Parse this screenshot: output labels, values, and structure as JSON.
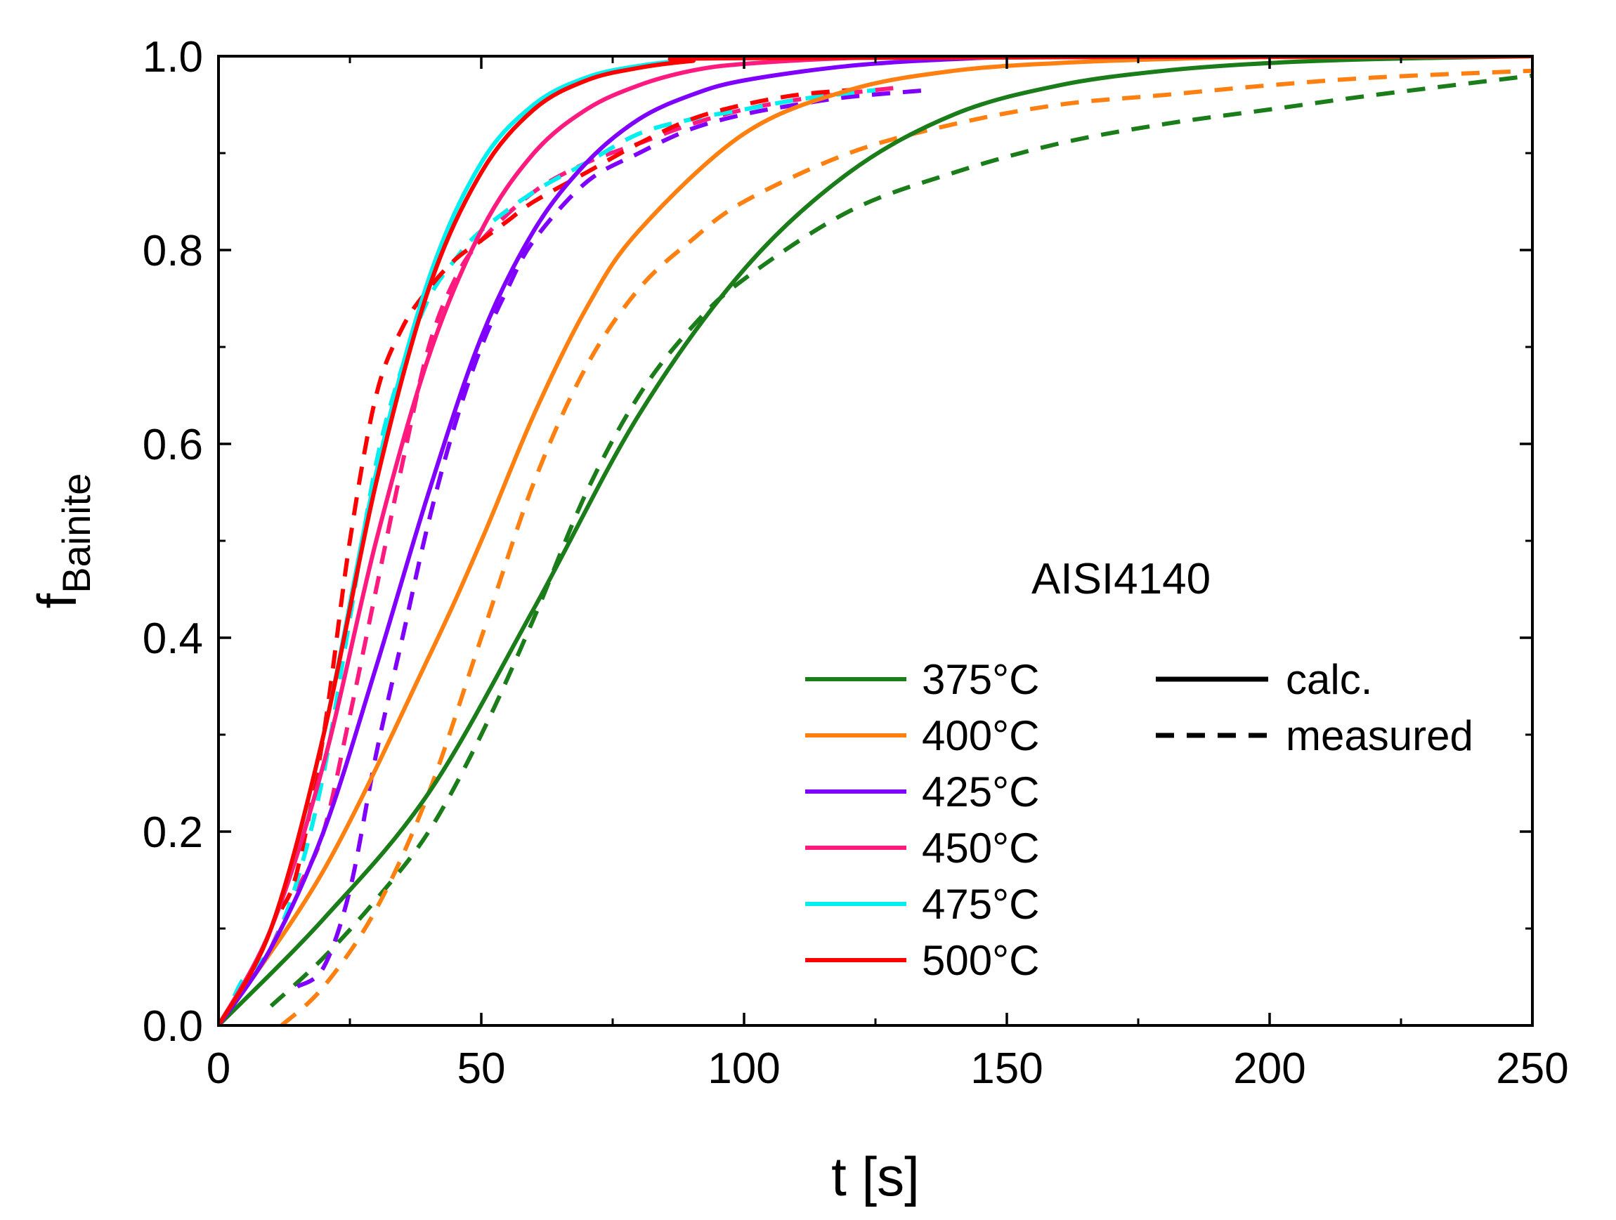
{
  "chart_data": {
    "type": "line",
    "title": "",
    "annotation": "AISI4140",
    "xlabel": "t [s]",
    "ylabel": {
      "main": "f",
      "sub": "Bainite"
    },
    "xlim": [
      0,
      250
    ],
    "ylim": [
      0,
      1.0
    ],
    "x_ticks": [
      0,
      50,
      100,
      150,
      200,
      250
    ],
    "x_tick_labels": [
      "0",
      "50",
      "100",
      "150",
      "200",
      "250"
    ],
    "y_ticks": [
      0,
      0.2,
      0.4,
      0.6,
      0.8,
      1.0
    ],
    "y_tick_labels": [
      "0.0",
      "0.2",
      "0.4",
      "0.6",
      "0.8",
      "1.0"
    ],
    "legend_style": [
      {
        "label": "calc.",
        "dash": "solid"
      },
      {
        "label": "measured",
        "dash": "dashed"
      }
    ],
    "series": [
      {
        "name": "375°C",
        "color": "#1a7d1a",
        "calc": {
          "x": [
            0,
            20,
            40,
            60,
            80,
            100,
            120,
            140,
            160,
            180,
            200,
            220,
            250
          ],
          "y": [
            0,
            0.11,
            0.24,
            0.43,
            0.63,
            0.78,
            0.88,
            0.94,
            0.97,
            0.985,
            0.993,
            0.997,
            1.0
          ]
        },
        "measured": {
          "x": [
            10,
            20,
            30,
            40,
            50,
            60,
            70,
            80,
            90,
            100,
            120,
            140,
            160,
            180,
            200,
            220,
            250
          ],
          "y": [
            0.02,
            0.07,
            0.13,
            0.2,
            0.3,
            0.42,
            0.55,
            0.65,
            0.72,
            0.77,
            0.84,
            0.88,
            0.91,
            0.93,
            0.945,
            0.96,
            0.98
          ]
        }
      },
      {
        "name": "400°C",
        "color": "#ff8010",
        "calc": {
          "x": [
            0,
            20,
            40,
            50,
            60,
            70,
            80,
            100,
            120,
            140,
            160,
            180,
            200,
            250
          ],
          "y": [
            0,
            0.16,
            0.38,
            0.5,
            0.63,
            0.74,
            0.82,
            0.92,
            0.965,
            0.985,
            0.993,
            0.997,
            0.999,
            1.0
          ]
        },
        "measured": {
          "x": [
            12,
            20,
            30,
            40,
            50,
            60,
            70,
            80,
            90,
            100,
            120,
            140,
            160,
            180,
            200,
            220,
            250
          ],
          "y": [
            0.0,
            0.04,
            0.12,
            0.24,
            0.4,
            0.56,
            0.68,
            0.76,
            0.81,
            0.85,
            0.9,
            0.93,
            0.95,
            0.96,
            0.97,
            0.978,
            0.985
          ]
        }
      },
      {
        "name": "425°C",
        "color": "#8000ff",
        "calc": {
          "x": [
            0,
            10,
            20,
            30,
            40,
            50,
            60,
            70,
            80,
            90,
            100,
            120,
            140,
            160,
            250
          ],
          "y": [
            0,
            0.08,
            0.2,
            0.37,
            0.55,
            0.71,
            0.82,
            0.89,
            0.935,
            0.96,
            0.975,
            0.99,
            0.997,
            0.999,
            1.0
          ]
        },
        "measured": {
          "x": [
            15,
            20,
            25,
            30,
            35,
            40,
            45,
            50,
            55,
            60,
            70,
            80,
            90,
            100,
            110,
            120,
            135
          ],
          "y": [
            0.04,
            0.06,
            0.14,
            0.28,
            0.4,
            0.52,
            0.62,
            0.7,
            0.76,
            0.81,
            0.87,
            0.9,
            0.925,
            0.94,
            0.95,
            0.958,
            0.965
          ]
        }
      },
      {
        "name": "450°C",
        "color": "#ff1a80",
        "calc": {
          "x": [
            0,
            10,
            20,
            30,
            40,
            50,
            60,
            70,
            80,
            90,
            100,
            120,
            140,
            250
          ],
          "y": [
            0,
            0.1,
            0.27,
            0.5,
            0.69,
            0.82,
            0.9,
            0.945,
            0.97,
            0.985,
            0.992,
            0.998,
            0.999,
            1.0
          ]
        },
        "measured": {
          "x": [
            10,
            15,
            20,
            25,
            30,
            35,
            40,
            45,
            50,
            60,
            70,
            80,
            90,
            100,
            110,
            120,
            130
          ],
          "y": [
            0.08,
            0.14,
            0.2,
            0.32,
            0.45,
            0.58,
            0.7,
            0.77,
            0.81,
            0.86,
            0.89,
            0.91,
            0.93,
            0.945,
            0.955,
            0.962,
            0.968
          ]
        }
      },
      {
        "name": "475°C",
        "color": "#00f0f0",
        "calc": {
          "x": [
            0,
            10,
            20,
            30,
            40,
            50,
            60,
            70,
            80,
            90,
            100,
            250
          ],
          "y": [
            0,
            0.1,
            0.3,
            0.57,
            0.77,
            0.89,
            0.95,
            0.978,
            0.99,
            0.996,
            0.998,
            1.0
          ]
        },
        "measured": {
          "x": [
            3,
            5,
            10,
            15,
            20,
            25,
            30,
            35,
            40,
            45,
            50,
            60,
            70,
            80,
            90,
            100,
            110,
            120,
            125
          ],
          "y": [
            0.03,
            0.05,
            0.08,
            0.15,
            0.26,
            0.42,
            0.58,
            0.68,
            0.75,
            0.79,
            0.82,
            0.86,
            0.89,
            0.92,
            0.935,
            0.945,
            0.955,
            0.962,
            0.965
          ]
        }
      },
      {
        "name": "500°C",
        "color": "#ff0000",
        "calc": {
          "x": [
            0,
            10,
            20,
            30,
            40,
            50,
            60,
            70,
            80,
            90,
            100,
            250
          ],
          "y": [
            0,
            0.1,
            0.3,
            0.56,
            0.76,
            0.88,
            0.945,
            0.975,
            0.988,
            0.995,
            0.998,
            1.0
          ]
        },
        "measured": {
          "x": [
            12,
            15,
            20,
            25,
            30,
            35,
            40,
            45,
            50,
            55,
            60,
            70,
            80,
            90,
            100,
            110,
            120
          ],
          "y": [
            0.12,
            0.16,
            0.3,
            0.5,
            0.65,
            0.72,
            0.76,
            0.79,
            0.81,
            0.83,
            0.85,
            0.88,
            0.91,
            0.935,
            0.95,
            0.96,
            0.965
          ]
        }
      }
    ]
  }
}
